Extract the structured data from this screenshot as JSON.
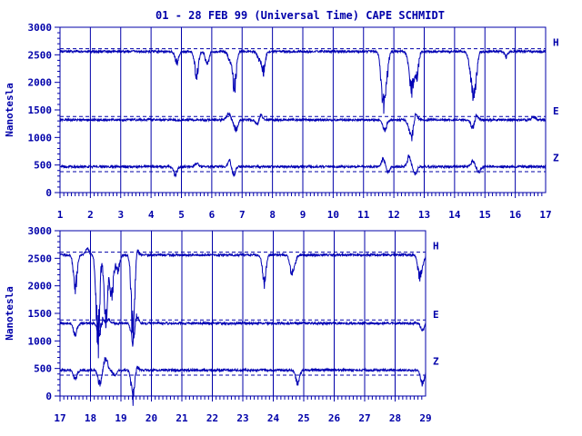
{
  "title": "01 - 28 FEB 99 (Universal Time) CAPE SCHMIDT",
  "colors": {
    "ink": "#0000aa",
    "trace": "#0000b4",
    "background": "#ffffff"
  },
  "chart_data": [
    {
      "type": "line",
      "ylabel": "Nanotesla",
      "xlim": [
        1,
        17
      ],
      "ylim": [
        0,
        3000
      ],
      "y_ticks": [
        0,
        500,
        1000,
        1500,
        2000,
        2500,
        3000
      ],
      "x_ticks": [
        1,
        2,
        3,
        4,
        5,
        6,
        7,
        8,
        9,
        10,
        11,
        12,
        13,
        14,
        15,
        16,
        17
      ],
      "grid": "vertical lines at each day",
      "series": [
        {
          "name": "H",
          "baseline": 2560,
          "reference": 2610,
          "events": [
            [
              5.5,
              2000
            ],
            [
              5.85,
              2250
            ],
            [
              6.75,
              1750
            ],
            [
              6.6,
              2350
            ],
            [
              7.7,
              2100
            ],
            [
              7.55,
              2400
            ],
            [
              11.65,
              1700
            ],
            [
              11.75,
              1950
            ],
            [
              11.6,
              2250
            ],
            [
              12.6,
              1780
            ],
            [
              12.75,
              2000
            ],
            [
              12.5,
              2300
            ],
            [
              14.6,
              1750
            ],
            [
              14.7,
              2050
            ],
            [
              14.5,
              2300
            ],
            [
              15.7,
              2450
            ],
            [
              4.85,
              2300
            ]
          ]
        },
        {
          "name": "E",
          "baseline": 1320,
          "reference": 1380,
          "events": [
            [
              6.8,
              1080
            ],
            [
              6.55,
              1450
            ],
            [
              7.5,
              1200
            ],
            [
              7.6,
              1450
            ],
            [
              11.7,
              1070
            ],
            [
              12.6,
              900
            ],
            [
              12.7,
              1500
            ],
            [
              12.5,
              1200
            ],
            [
              14.6,
              1100
            ],
            [
              14.7,
              1450
            ],
            [
              16.6,
              1400
            ]
          ]
        },
        {
          "name": "Z",
          "baseline": 470,
          "reference": 380,
          "events": [
            [
              4.8,
              280
            ],
            [
              5.5,
              550
            ],
            [
              6.7,
              250
            ],
            [
              6.6,
              650
            ],
            [
              11.65,
              650
            ],
            [
              11.8,
              330
            ],
            [
              12.5,
              700
            ],
            [
              12.7,
              300
            ],
            [
              14.6,
              600
            ],
            [
              14.8,
              350
            ]
          ]
        }
      ]
    },
    {
      "type": "line",
      "ylabel": "Nanotesla",
      "xlim": [
        17,
        29
      ],
      "ylim": [
        0,
        3000
      ],
      "y_ticks": [
        0,
        500,
        1000,
        1500,
        2000,
        2500,
        3000
      ],
      "x_ticks": [
        17,
        18,
        19,
        20,
        21,
        22,
        23,
        24,
        25,
        26,
        27,
        28,
        29
      ],
      "grid": "vertical lines at each day",
      "series": [
        {
          "name": "H",
          "baseline": 2560,
          "reference": 2610,
          "events": [
            [
              17.5,
              1800
            ],
            [
              17.9,
              2700
            ],
            [
              18.25,
              400
            ],
            [
              18.3,
              3000
            ],
            [
              18.5,
              1100
            ],
            [
              18.7,
              1600
            ],
            [
              18.9,
              2200
            ],
            [
              19.4,
              700
            ],
            [
              19.5,
              2800
            ],
            [
              23.7,
              1950
            ],
            [
              24.6,
              2150
            ],
            [
              24.7,
              2400
            ],
            [
              28.8,
              2100
            ],
            [
              28.9,
              2400
            ]
          ]
        },
        {
          "name": "E",
          "baseline": 1320,
          "reference": 1380,
          "events": [
            [
              17.5,
              1050
            ],
            [
              18.3,
              850
            ],
            [
              18.35,
              1600
            ],
            [
              18.6,
              1400
            ],
            [
              19.4,
              850
            ],
            [
              19.5,
              1550
            ],
            [
              28.9,
              1150
            ]
          ]
        },
        {
          "name": "Z",
          "baseline": 470,
          "reference": 380,
          "events": [
            [
              17.5,
              250
            ],
            [
              18.3,
              150
            ],
            [
              18.5,
              750
            ],
            [
              18.8,
              350
            ],
            [
              19.4,
              -200
            ],
            [
              19.5,
              600
            ],
            [
              24.8,
              160
            ],
            [
              28.9,
              150
            ]
          ]
        }
      ]
    }
  ]
}
